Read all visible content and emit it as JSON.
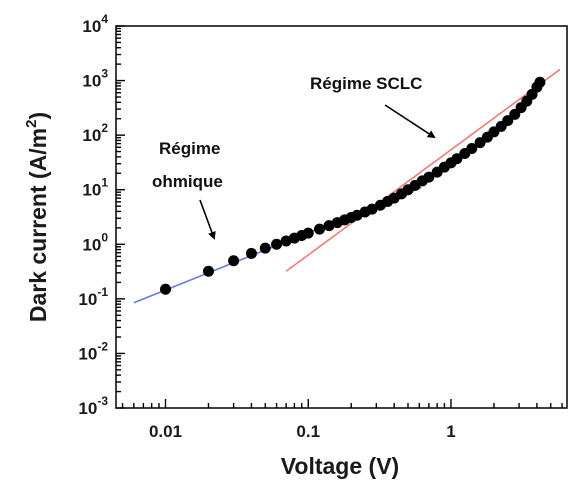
{
  "chart_data": {
    "type": "scatter",
    "xlabel": "Voltage (V)",
    "ylabel": "Dark current (A/m",
    "ylabel_sup": "2",
    "ylabel_end": ")",
    "x_scale": "log",
    "y_scale": "log",
    "xlim": [
      0.0045,
      6.5
    ],
    "ylim": [
      0.001,
      10000
    ],
    "x_ticks": [
      {
        "value": 0.01,
        "label": "0.01"
      },
      {
        "value": 0.1,
        "label": "0.1"
      },
      {
        "value": 1,
        "label": "1"
      }
    ],
    "y_ticks": [
      {
        "value": 0.001,
        "base": "10",
        "exp": "-3"
      },
      {
        "value": 0.01,
        "base": "10",
        "exp": "-2"
      },
      {
        "value": 0.1,
        "base": "10",
        "exp": "-1"
      },
      {
        "value": 1,
        "base": "10",
        "exp": "0"
      },
      {
        "value": 10,
        "base": "10",
        "exp": "1"
      },
      {
        "value": 100,
        "base": "10",
        "exp": "2"
      },
      {
        "value": 1000,
        "base": "10",
        "exp": "3"
      },
      {
        "value": 10000,
        "base": "10",
        "exp": "4"
      }
    ],
    "grid": false,
    "series": [
      {
        "marker": "circle",
        "color": "#000000",
        "points": [
          [
            0.01,
            0.15
          ],
          [
            0.02,
            0.32
          ],
          [
            0.03,
            0.5
          ],
          [
            0.04,
            0.68
          ],
          [
            0.05,
            0.85
          ],
          [
            0.06,
            1.0
          ],
          [
            0.07,
            1.15
          ],
          [
            0.08,
            1.3
          ],
          [
            0.09,
            1.45
          ],
          [
            0.1,
            1.6
          ],
          [
            0.12,
            1.9
          ],
          [
            0.14,
            2.2
          ],
          [
            0.16,
            2.5
          ],
          [
            0.18,
            2.8
          ],
          [
            0.2,
            3.1
          ],
          [
            0.22,
            3.4
          ],
          [
            0.25,
            3.9
          ],
          [
            0.28,
            4.4
          ],
          [
            0.32,
            5.2
          ],
          [
            0.36,
            6.1
          ],
          [
            0.4,
            7.0
          ],
          [
            0.45,
            8.4
          ],
          [
            0.5,
            10
          ],
          [
            0.56,
            12
          ],
          [
            0.63,
            14.5
          ],
          [
            0.7,
            17
          ],
          [
            0.8,
            21
          ],
          [
            0.9,
            26
          ],
          [
            1.0,
            31
          ],
          [
            1.1,
            37
          ],
          [
            1.25,
            46
          ],
          [
            1.4,
            57
          ],
          [
            1.6,
            73
          ],
          [
            1.8,
            92
          ],
          [
            2.0,
            115
          ],
          [
            2.25,
            145
          ],
          [
            2.5,
            185
          ],
          [
            2.8,
            240
          ],
          [
            3.1,
            320
          ],
          [
            3.4,
            420
          ],
          [
            3.7,
            560
          ],
          [
            4.0,
            760
          ],
          [
            4.2,
            930
          ]
        ]
      }
    ],
    "fit_lines": [
      {
        "color": "#6a78f0",
        "points": [
          [
            0.006,
            0.085
          ],
          [
            0.62,
            11
          ]
        ]
      },
      {
        "color": "#f07a7a",
        "points": [
          [
            0.07,
            0.32
          ],
          [
            5.8,
            1600
          ]
        ]
      }
    ],
    "annotations": [
      {
        "lines": [
          "Régime",
          "ohmique"
        ]
      },
      {
        "lines": [
          "Régime SCLC"
        ]
      }
    ]
  }
}
